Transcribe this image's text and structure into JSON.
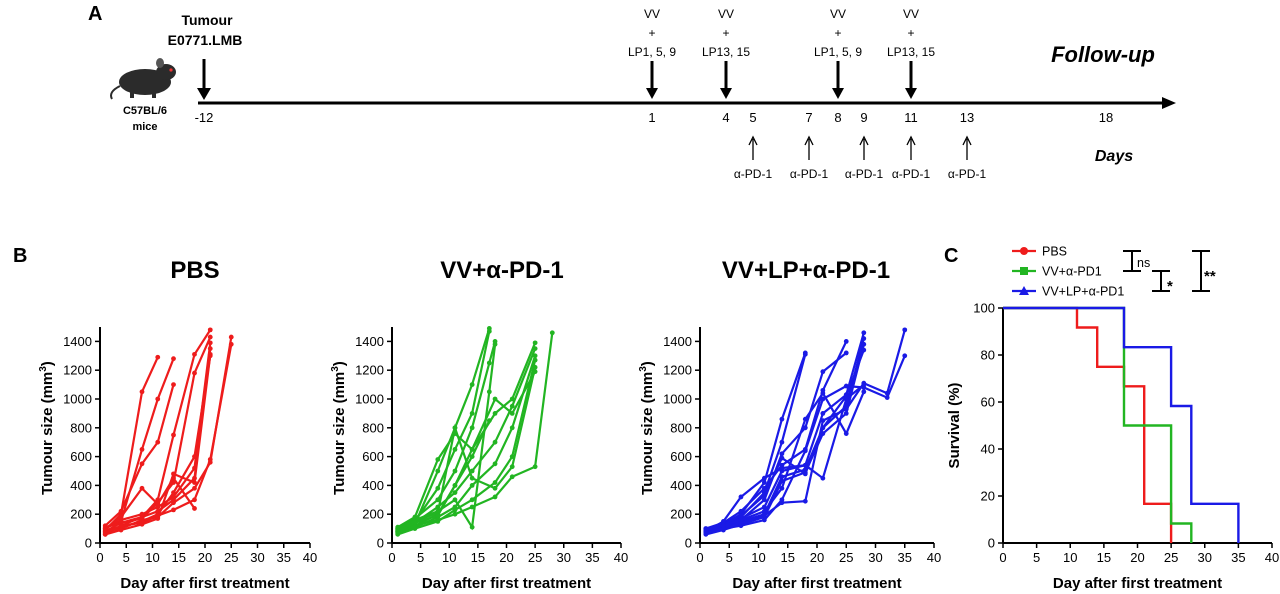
{
  "timeline": {
    "panel_label": "A",
    "tumour_line1": "Tumour",
    "tumour_line2": "E0771.LMB",
    "mouse_line1": "C57BL/6",
    "mouse_line2": "mice",
    "follow_up": "Follow-up",
    "days_label": "Days",
    "day_ticks": [
      "-12",
      "1",
      "4",
      "5",
      "7",
      "8",
      "9",
      "11",
      "13",
      "18"
    ],
    "treatments": [
      {
        "day": "1",
        "l1": "VV",
        "l2": "+",
        "l3": "LP1, 5, 9"
      },
      {
        "day": "4",
        "l1": "VV",
        "l2": "+",
        "l3": "LP13, 15"
      },
      {
        "day": "8",
        "l1": "VV",
        "l2": "+",
        "l3": "LP1, 5, 9"
      },
      {
        "day": "11",
        "l1": "VV",
        "l2": "+",
        "l3": "LP13, 15"
      }
    ],
    "antibody_days": [
      "5",
      "7",
      "9",
      "11",
      "13"
    ],
    "antibody_label": "α-PD-1"
  },
  "panel_b_label": "B",
  "panel_c_label": "C",
  "colors": {
    "pbs": "#ee1c1c",
    "vv": "#22b522",
    "vvlp": "#1a1ae6"
  },
  "chart_data": [
    {
      "type": "line",
      "title": "PBS",
      "xlabel": "Day after first treatment",
      "ylabel": "Tumour size (mm3)",
      "ylabel_main": "Tumour size (mm",
      "ylabel_sup": "3",
      "ylabel_end": ")",
      "xlim": [
        0,
        40
      ],
      "ylim": [
        0,
        1500
      ],
      "xticks": [
        "0",
        "5",
        "10",
        "15",
        "20",
        "25",
        "30",
        "35",
        "40"
      ],
      "yticks": [
        "0",
        "200",
        "400",
        "600",
        "800",
        "1000",
        "1200",
        "1400"
      ],
      "color": "#ee1c1c",
      "series": [
        {
          "x": [
            1,
            4,
            8,
            11
          ],
          "y": [
            90,
            200,
            1050,
            1290
          ]
        },
        {
          "x": [
            1,
            4,
            8,
            11,
            14
          ],
          "y": [
            70,
            150,
            650,
            1000,
            1280
          ]
        },
        {
          "x": [
            1,
            4,
            8,
            11,
            14,
            18,
            21
          ],
          "y": [
            60,
            120,
            180,
            300,
            750,
            1310,
            1480
          ]
        },
        {
          "x": [
            1,
            4,
            8,
            11,
            14,
            18,
            21
          ],
          "y": [
            80,
            140,
            170,
            280,
            420,
            1180,
            1430
          ]
        },
        {
          "x": [
            1,
            4,
            8,
            11,
            14,
            18,
            21
          ],
          "y": [
            100,
            160,
            200,
            250,
            320,
            520,
            1390
          ]
        },
        {
          "x": [
            1,
            4,
            8,
            11,
            14,
            18,
            21
          ],
          "y": [
            110,
            140,
            180,
            220,
            300,
            450,
            1350
          ]
        },
        {
          "x": [
            1,
            4,
            8,
            11,
            14,
            18,
            21
          ],
          "y": [
            90,
            110,
            150,
            200,
            350,
            600,
            1300
          ]
        },
        {
          "x": [
            1,
            4,
            8,
            11,
            14,
            18,
            21,
            25
          ],
          "y": [
            80,
            100,
            160,
            180,
            280,
            380,
            560,
            1430
          ]
        },
        {
          "x": [
            1,
            4,
            8,
            11,
            14,
            18,
            21,
            25
          ],
          "y": [
            70,
            120,
            140,
            190,
            230,
            300,
            580,
            1380
          ]
        },
        {
          "x": [
            1,
            4,
            8,
            11,
            14,
            18
          ],
          "y": [
            100,
            180,
            380,
            270,
            450,
            240
          ]
        },
        {
          "x": [
            1,
            4,
            8,
            11,
            14,
            18,
            21
          ],
          "y": [
            60,
            90,
            130,
            170,
            480,
            420,
            1310
          ]
        },
        {
          "x": [
            1,
            4,
            8,
            11,
            14
          ],
          "y": [
            120,
            220,
            550,
            700,
            1100
          ]
        }
      ]
    },
    {
      "type": "line",
      "title": "VV+α-PD-1",
      "xlabel": "Day after first treatment",
      "ylabel": "Tumour size (mm3)",
      "ylabel_main": "Tumour size (mm",
      "ylabel_sup": "3",
      "ylabel_end": ")",
      "xlim": [
        0,
        40
      ],
      "ylim": [
        0,
        1500
      ],
      "xticks": [
        "0",
        "5",
        "10",
        "15",
        "20",
        "25",
        "30",
        "35",
        "40"
      ],
      "yticks": [
        "0",
        "200",
        "400",
        "600",
        "800",
        "1000",
        "1200",
        "1400"
      ],
      "color": "#22b522",
      "series": [
        {
          "x": [
            1,
            4,
            8,
            11,
            14,
            17
          ],
          "y": [
            80,
            130,
            500,
            800,
            1100,
            1490
          ]
        },
        {
          "x": [
            1,
            4,
            8,
            11,
            14,
            17
          ],
          "y": [
            90,
            150,
            380,
            650,
            900,
            1470
          ]
        },
        {
          "x": [
            1,
            4,
            8,
            11,
            14,
            17,
            18
          ],
          "y": [
            100,
            170,
            300,
            500,
            800,
            1250,
            1400
          ]
        },
        {
          "x": [
            1,
            4,
            8,
            11,
            14,
            18,
            21,
            25
          ],
          "y": [
            70,
            120,
            200,
            400,
            650,
            900,
            1000,
            1390
          ]
        },
        {
          "x": [
            1,
            4,
            8,
            11,
            14,
            18,
            21,
            25
          ],
          "y": [
            90,
            140,
            250,
            350,
            500,
            700,
            950,
            1350
          ]
        },
        {
          "x": [
            1,
            4,
            8,
            11,
            14,
            18,
            21,
            25
          ],
          "y": [
            80,
            110,
            180,
            250,
            400,
            550,
            800,
            1300
          ]
        },
        {
          "x": [
            1,
            4,
            8,
            11,
            14,
            18,
            21,
            25
          ],
          "y": [
            60,
            100,
            150,
            230,
            300,
            420,
            600,
            1270
          ]
        },
        {
          "x": [
            1,
            4,
            8,
            11,
            14,
            18,
            21,
            25
          ],
          "y": [
            100,
            150,
            210,
            800,
            450,
            380,
            530,
            1220
          ]
        },
        {
          "x": [
            1,
            4,
            8,
            11,
            14,
            18,
            21,
            25,
            28
          ],
          "y": [
            70,
            120,
            160,
            200,
            250,
            320,
            460,
            530,
            1460
          ]
        },
        {
          "x": [
            1,
            4,
            8,
            11,
            14,
            18,
            21,
            25
          ],
          "y": [
            110,
            180,
            580,
            760,
            650,
            1000,
            900,
            1190
          ]
        },
        {
          "x": [
            1,
            4,
            8,
            11,
            14,
            17,
            18
          ],
          "y": [
            90,
            160,
            220,
            300,
            110,
            1050,
            1380
          ]
        },
        {
          "x": [
            1,
            4,
            8,
            11,
            14,
            17
          ],
          "y": [
            80,
            140,
            190,
            400,
            600,
            850
          ]
        }
      ]
    },
    {
      "type": "line",
      "title": "VV+LP+α-PD-1",
      "xlabel": "Day after first treatment",
      "ylabel": "Tumour size (mm3)",
      "ylabel_main": "Tumour size (mm",
      "ylabel_sup": "3",
      "ylabel_end": ")",
      "xlim": [
        0,
        40
      ],
      "ylim": [
        0,
        1500
      ],
      "xticks": [
        "0",
        "5",
        "10",
        "15",
        "20",
        "25",
        "30",
        "35",
        "40"
      ],
      "yticks": [
        "0",
        "200",
        "400",
        "600",
        "800",
        "1000",
        "1200",
        "1400"
      ],
      "color": "#1a1ae6",
      "series": [
        {
          "x": [
            1,
            4,
            7,
            11,
            14,
            18
          ],
          "y": [
            90,
            130,
            200,
            420,
            860,
            1320
          ]
        },
        {
          "x": [
            1,
            4,
            7,
            11,
            14,
            18
          ],
          "y": [
            80,
            120,
            180,
            350,
            700,
            1310
          ]
        },
        {
          "x": [
            1,
            4,
            7,
            11,
            14,
            18,
            21,
            25
          ],
          "y": [
            70,
            110,
            160,
            300,
            620,
            800,
            1190,
            1320
          ]
        },
        {
          "x": [
            1,
            4,
            7,
            11,
            14,
            18,
            21,
            25
          ],
          "y": [
            100,
            140,
            220,
            380,
            540,
            650,
            1060,
            1400
          ]
        },
        {
          "x": [
            1,
            4,
            7,
            11,
            14,
            18,
            21,
            25,
            28
          ],
          "y": [
            90,
            120,
            170,
            250,
            500,
            540,
            900,
            1030,
            1460
          ]
        },
        {
          "x": [
            1,
            4,
            7,
            11,
            14,
            18,
            21,
            25,
            28
          ],
          "y": [
            80,
            100,
            150,
            200,
            460,
            510,
            800,
            950,
            1420
          ]
        },
        {
          "x": [
            1,
            4,
            7,
            11,
            14,
            18,
            21,
            25,
            28
          ],
          "y": [
            60,
            90,
            130,
            180,
            430,
            490,
            760,
            900,
            1380
          ]
        },
        {
          "x": [
            1,
            4,
            7,
            11,
            14,
            18,
            21,
            25,
            28,
            32,
            35
          ],
          "y": [
            90,
            110,
            140,
            190,
            280,
            290,
            850,
            930,
            1110,
            1040,
            1480
          ]
        },
        {
          "x": [
            1,
            4,
            7,
            11,
            14,
            18,
            21,
            25,
            28,
            32,
            35
          ],
          "y": [
            70,
            100,
            120,
            160,
            300,
            640,
            1000,
            1090,
            1080,
            1010,
            1300
          ]
        },
        {
          "x": [
            1,
            4,
            7,
            11,
            14,
            18,
            21,
            25,
            28
          ],
          "y": [
            100,
            130,
            190,
            330,
            590,
            480,
            800,
            1020,
            1340
          ]
        },
        {
          "x": [
            1,
            4,
            7,
            11,
            14,
            18,
            21,
            25,
            28
          ],
          "y": [
            80,
            150,
            320,
            450,
            520,
            540,
            450,
            1000,
            1100
          ]
        },
        {
          "x": [
            1,
            4,
            7,
            11,
            14,
            18,
            21,
            25,
            28
          ],
          "y": [
            90,
            120,
            160,
            220,
            380,
            860,
            1040,
            760,
            1050
          ]
        }
      ]
    },
    {
      "type": "line",
      "title": "",
      "xlabel": "Day after first treatment",
      "ylabel": "Survival (%)",
      "xlim": [
        0,
        40
      ],
      "ylim": [
        0,
        100
      ],
      "xticks": [
        "0",
        "5",
        "10",
        "15",
        "20",
        "25",
        "30",
        "35",
        "40"
      ],
      "yticks": [
        "0",
        "20",
        "40",
        "60",
        "80",
        "100"
      ],
      "legend": "top",
      "series": [
        {
          "name": "PBS",
          "color": "#ee1c1c",
          "marker": "circle",
          "x": [
            0,
            11,
            14,
            18,
            21,
            25
          ],
          "y": [
            100,
            91.7,
            75,
            66.7,
            16.7,
            0
          ]
        },
        {
          "name": "VV+α-PD1",
          "color": "#22b522",
          "marker": "square",
          "x": [
            0,
            18,
            25,
            28
          ],
          "y": [
            100,
            50,
            8.3,
            0
          ]
        },
        {
          "name": "VV+LP+α-PD1",
          "color": "#1a1ae6",
          "marker": "triangle",
          "x": [
            0,
            18,
            25,
            28,
            35
          ],
          "y": [
            100,
            83.3,
            58.3,
            16.7,
            0
          ]
        }
      ],
      "significance": [
        {
          "label": "ns"
        },
        {
          "label": "*"
        },
        {
          "label": "**"
        }
      ]
    }
  ]
}
